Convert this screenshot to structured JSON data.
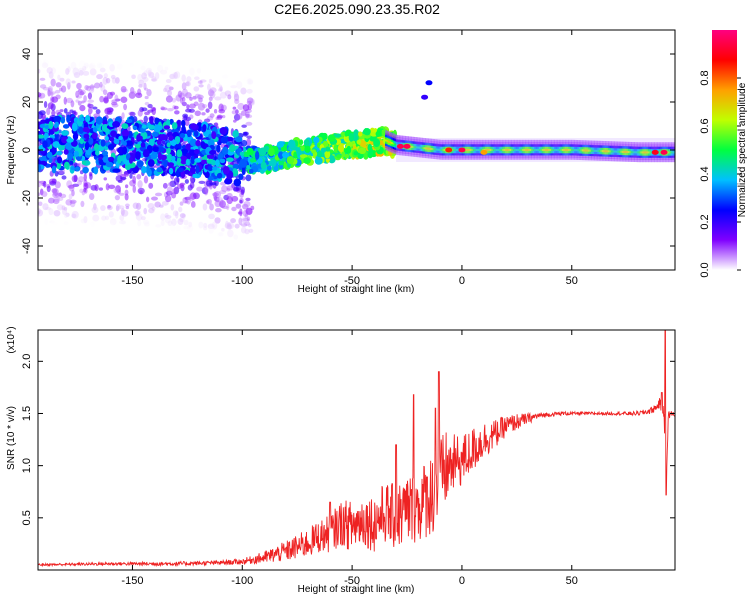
{
  "title": "C2E6.2025.090.23.35.R02",
  "chart_data": [
    {
      "type": "heatmap",
      "name": "spectrogram",
      "xlabel": "Height of straight line (km)",
      "ylabel": "Frequency (Hz)",
      "xlim": [
        -193,
        97
      ],
      "ylim": [
        -50,
        50
      ],
      "x_ticks": [
        -150,
        -100,
        -50,
        0,
        50
      ],
      "y_ticks": [
        -40,
        -20,
        0,
        20,
        40
      ],
      "colorbar": {
        "label": "Normalized spectral amplitude",
        "range": [
          0.0,
          1.0
        ],
        "ticks": [
          0.0,
          0.2,
          0.4,
          0.6,
          0.8
        ],
        "colormap": [
          "#ffffff",
          "#8000ff",
          "#0000ff",
          "#00c0ff",
          "#00ff40",
          "#c0ff00",
          "#ffa000",
          "#ff0000",
          "#ff0080"
        ]
      },
      "ridge_center_hz": {
        "x": [
          -190,
          -150,
          -120,
          -100,
          -90,
          -75,
          -60,
          -50,
          -40,
          -35,
          -30,
          -20,
          -10,
          0,
          20,
          50,
          80,
          95
        ],
        "y": [
          3,
          2,
          0,
          -4,
          -4,
          -1,
          1,
          2,
          3,
          4,
          2,
          1,
          0,
          0,
          0,
          0,
          -1,
          -1
        ]
      },
      "grid": false
    },
    {
      "type": "line",
      "name": "snr",
      "xlabel": "Height of straight line (km)",
      "ylabel": "SNR (10 * v/v)",
      "y_multiplier_label": "(x10⁴)",
      "xlim": [
        -193,
        97
      ],
      "ylim": [
        0,
        2.3
      ],
      "x_ticks": [
        -150,
        -100,
        -50,
        0,
        50
      ],
      "y_ticks": [
        0.5,
        1.0,
        1.5,
        2.0
      ],
      "color": "#ee2222",
      "x": [
        -193,
        -160,
        -130,
        -110,
        -100,
        -95,
        -90,
        -85,
        -80,
        -75,
        -70,
        -65,
        -60,
        -55,
        -50,
        -45,
        -40,
        -35,
        -30,
        -25,
        -20,
        -15,
        -12,
        -10,
        -8,
        -5,
        0,
        5,
        10,
        15,
        20,
        25,
        30,
        35,
        40,
        45,
        50,
        60,
        70,
        80,
        85,
        88,
        90,
        92,
        93,
        94,
        95,
        97
      ],
      "y": [
        0.05,
        0.06,
        0.06,
        0.07,
        0.08,
        0.1,
        0.12,
        0.15,
        0.18,
        0.22,
        0.26,
        0.32,
        0.35,
        0.45,
        0.42,
        0.48,
        0.45,
        0.55,
        0.5,
        0.58,
        0.6,
        0.72,
        0.75,
        0.8,
        0.95,
        1.0,
        1.05,
        1.15,
        1.25,
        1.3,
        1.38,
        1.42,
        1.45,
        1.48,
        1.49,
        1.5,
        1.5,
        1.5,
        1.5,
        1.5,
        1.52,
        1.55,
        1.6,
        1.5,
        0.8,
        1.48,
        1.5,
        1.49
      ],
      "noise_amp": [
        0.01,
        0.015,
        0.02,
        0.02,
        0.03,
        0.04,
        0.06,
        0.08,
        0.1,
        0.12,
        0.14,
        0.16,
        0.18,
        0.22,
        0.25,
        0.25,
        0.28,
        0.3,
        0.32,
        0.35,
        0.35,
        0.4,
        0.42,
        0.45,
        0.4,
        0.3,
        0.25,
        0.22,
        0.18,
        0.14,
        0.1,
        0.08,
        0.05,
        0.03,
        0.02,
        0.02,
        0.015,
        0.015,
        0.015,
        0.02,
        0.03,
        0.04,
        0.05,
        0.06,
        0.06,
        0.05,
        0.03,
        0.02
      ],
      "peaks": [
        {
          "x": -10.5,
          "y": 1.9
        },
        {
          "x": -12,
          "y": 1.55
        },
        {
          "x": -22,
          "y": 1.68
        },
        {
          "x": -30,
          "y": 1.2
        },
        {
          "x": -60,
          "y": 0.65
        },
        {
          "x": 92.5,
          "y": 2.3
        },
        {
          "x": 91,
          "y": 1.7
        },
        {
          "x": 93,
          "y": 0.72
        }
      ],
      "grid": false
    }
  ]
}
